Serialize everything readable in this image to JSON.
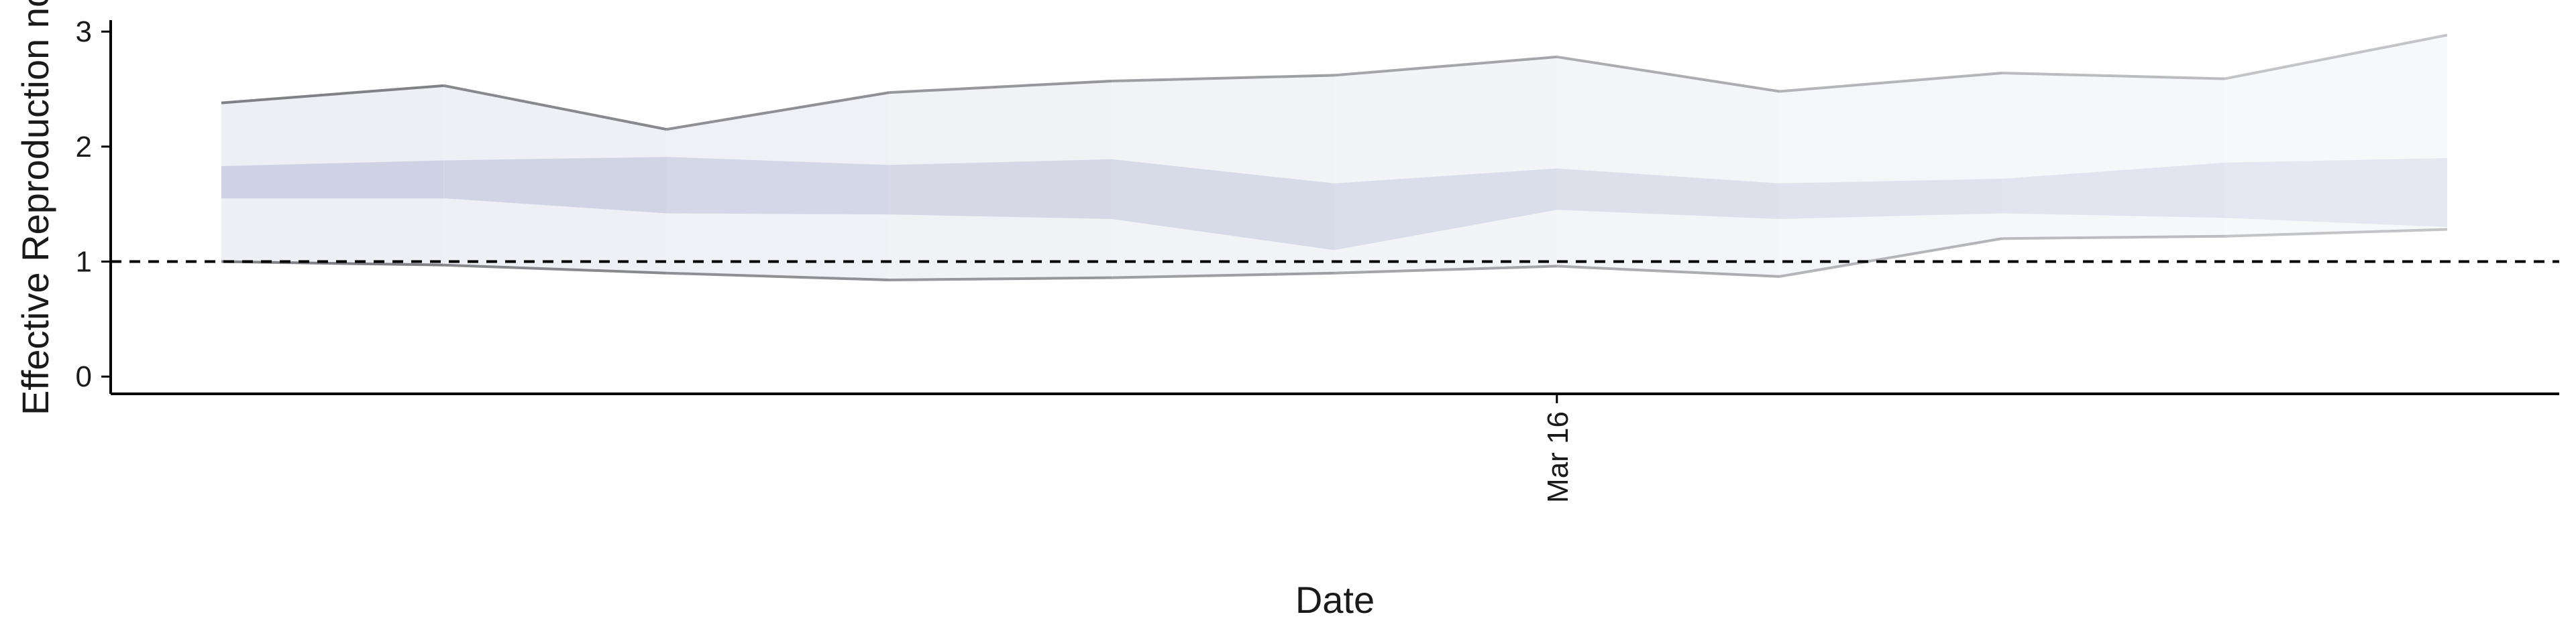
{
  "chart_data": {
    "type": "area",
    "title": "",
    "xlabel": "Date",
    "ylabel": "Effective Reproduction no",
    "x_tick_labels": [
      "Mar 16"
    ],
    "y_tick_labels": [
      "0",
      "1",
      "2",
      "3"
    ],
    "ylim": [
      -0.15,
      3.1
    ],
    "reference_line": {
      "y": 1,
      "style": "dashed"
    },
    "grid": false,
    "legend": "none",
    "x": [
      1,
      2,
      3,
      4,
      5,
      6,
      7,
      8,
      9,
      10,
      11
    ],
    "x_tick_positions": [
      7
    ],
    "xlim": [
      0.5,
      12.5
    ],
    "series": [
      {
        "name": "",
        "band": "outer",
        "lower": [
          1.0,
          0.97,
          0.9,
          0.84,
          0.86,
          0.9,
          0.96,
          0.87,
          1.2,
          1.22,
          1.28
        ],
        "upper": [
          2.38,
          2.53,
          2.15,
          2.47,
          2.57,
          2.62,
          2.78,
          2.48,
          2.64,
          2.59,
          2.97
        ]
      },
      {
        "name": "",
        "band": "inner",
        "lower": [
          1.55,
          1.55,
          1.42,
          1.41,
          1.37,
          1.1,
          1.45,
          1.37,
          1.42,
          1.38,
          1.3
        ],
        "upper": [
          1.83,
          1.88,
          1.91,
          1.84,
          1.89,
          1.68,
          1.81,
          1.68,
          1.72,
          1.86,
          1.9
        ]
      }
    ],
    "colors": {
      "inner_band": "#c9cde0",
      "outer_band": "#eceef4",
      "outer_edge": "#7a7a80",
      "threshold": "#000000"
    }
  }
}
